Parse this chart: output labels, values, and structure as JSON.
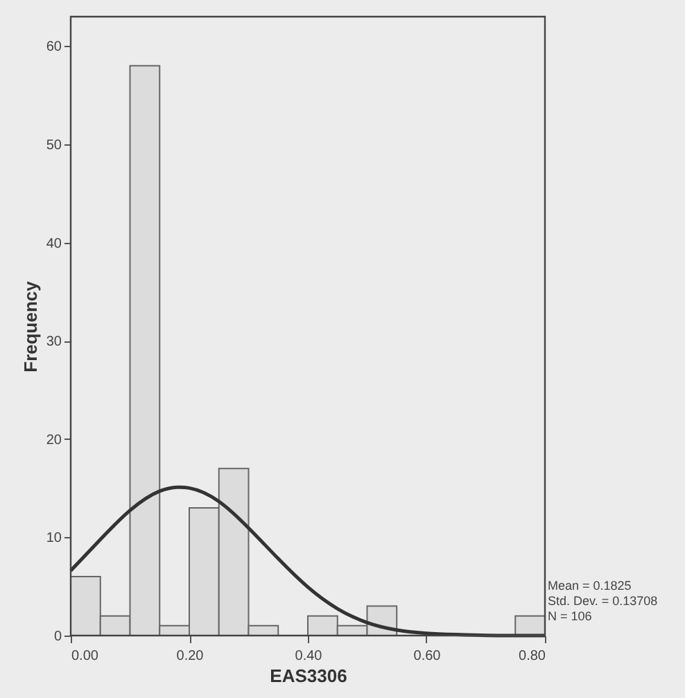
{
  "chart_data": {
    "type": "histogram",
    "xlabel": "EAS3306",
    "ylabel": "Frequency",
    "bins": [
      0,
      0.05,
      0.1,
      0.15,
      0.2,
      0.25,
      0.3,
      0.35,
      0.4,
      0.45,
      0.5,
      0.55,
      0.6,
      0.65,
      0.7,
      0.75,
      0.8
    ],
    "values": [
      6,
      2,
      58,
      1,
      13,
      17,
      1,
      0,
      2,
      1,
      3,
      0,
      0,
      0,
      0,
      2
    ],
    "color": "#dcdcdc",
    "series": [
      {
        "type": "line",
        "color": "#333333",
        "x": [
          0,
          0.05,
          0.1,
          0.15,
          0.2,
          0.25,
          0.3,
          0.35,
          0.4,
          0.45,
          0.5,
          0.55,
          0.6,
          0.65,
          0.7,
          0.75,
          0.8
        ],
        "values": [
          6.6,
          9.8,
          12.9,
          15.0,
          15.3,
          13.9,
          11.0,
          7.8,
          4.8,
          2.6,
          1.2,
          0.5,
          0.2,
          0.1,
          0,
          0,
          0
        ]
      }
    ],
    "xlim": [
      0,
      0.8
    ],
    "ylim": [
      0,
      63
    ],
    "xticks": [
      {
        "value": 0,
        "label": "0.00"
      },
      {
        "value": 0.2,
        "label": "0.20"
      },
      {
        "value": 0.4,
        "label": "0.40"
      },
      {
        "value": 0.6,
        "label": "0.60"
      },
      {
        "value": 0.8,
        "label": "0.80"
      }
    ],
    "yticks": [
      0,
      10,
      20,
      30,
      40,
      50,
      60
    ],
    "grid": false,
    "annotations": [
      "Mean = 0.1825",
      "Std. Dev. = 0.13708",
      "N = 106"
    ]
  }
}
